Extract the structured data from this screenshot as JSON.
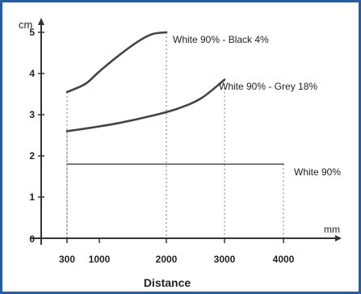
{
  "colors": {
    "frame": "#2b5d9e",
    "axis": "#333333",
    "curve": "#444444",
    "guide": "#777777"
  },
  "chart_data": {
    "type": "line",
    "xlabel": "Distance",
    "ylabel": "cm",
    "x_unit_label": "mm",
    "ylim": [
      0,
      5
    ],
    "grid": false,
    "x_ticks": [
      "300",
      "1000",
      "2000",
      "3000",
      "4000"
    ],
    "y_ticks": [
      "0",
      "1",
      "2",
      "3",
      "4",
      "5"
    ],
    "series": [
      {
        "name": "White 90% - Black 4%",
        "x": [
          300,
          700,
          1000,
          1300,
          1600,
          1800,
          2000
        ],
        "y": [
          3.55,
          3.75,
          4.05,
          4.45,
          4.8,
          4.96,
          5.0
        ]
      },
      {
        "name": "White 90% - Grey 18%",
        "x": [
          300,
          800,
          1300,
          1800,
          2200,
          2600,
          3000
        ],
        "y": [
          2.6,
          2.68,
          2.8,
          2.98,
          3.15,
          3.4,
          3.85
        ]
      },
      {
        "name": "White 90%",
        "x": [
          300,
          4000
        ],
        "y": [
          1.8,
          1.8
        ]
      }
    ]
  }
}
